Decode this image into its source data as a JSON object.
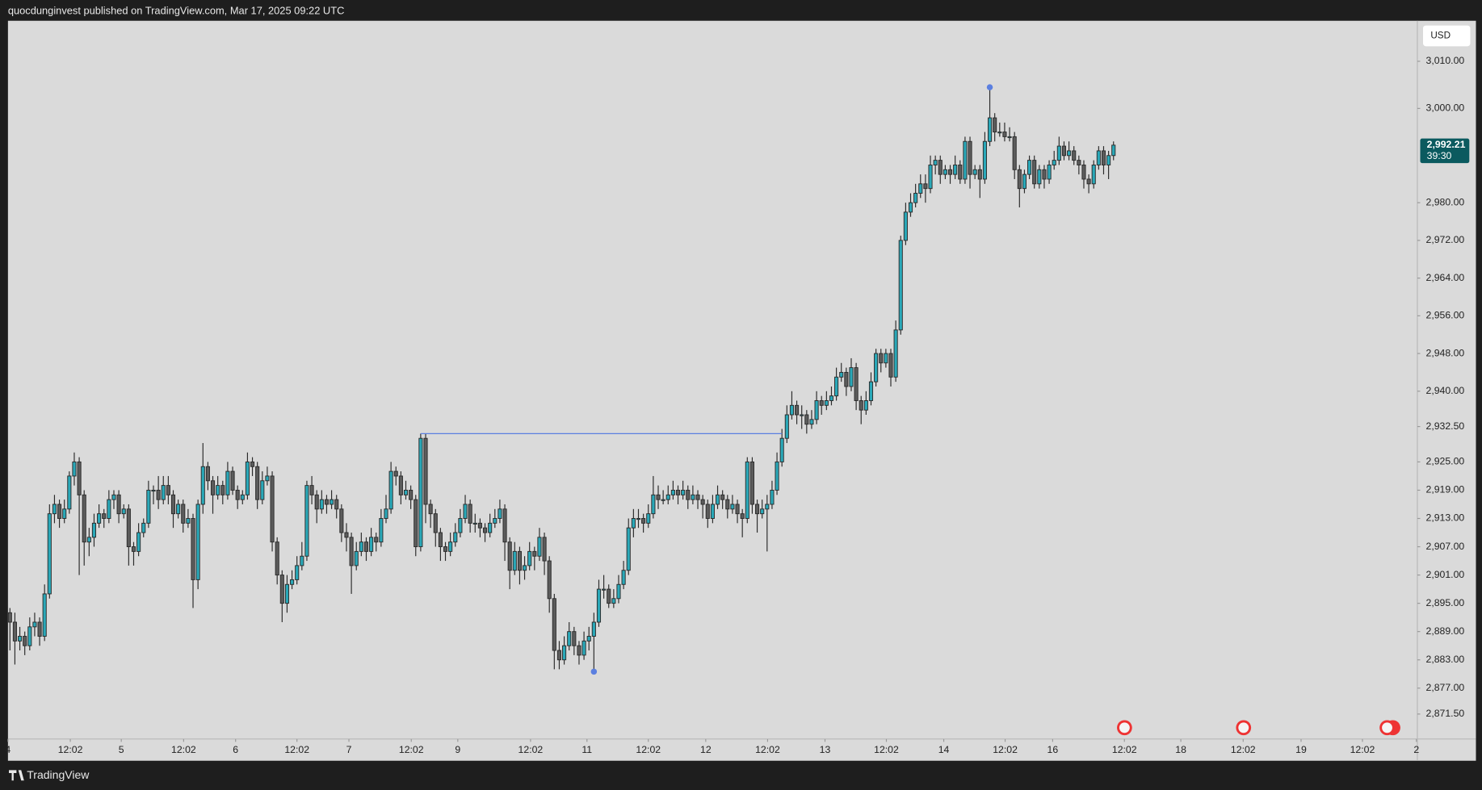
{
  "chart_data": {
    "type": "candlestick",
    "title": "quocdunginvest published on TradingView.com, Mar 17, 2025 09:22 UTC",
    "currency": "USD",
    "brand": "TradingView",
    "up_color": "#2aa8b8",
    "down_color": "#5c5c5c",
    "wick_color": "#2b2b2b",
    "grid": false,
    "ylim": [
      2866.2,
      3018.6
    ],
    "yticks": [
      {
        "value": 3010,
        "label": "3,010.00"
      },
      {
        "value": 3000,
        "label": "3,000.00"
      },
      {
        "value": 2980,
        "label": "2,980.00"
      },
      {
        "value": 2972,
        "label": "2,972.00"
      },
      {
        "value": 2964,
        "label": "2,964.00"
      },
      {
        "value": 2956,
        "label": "2,956.00"
      },
      {
        "value": 2948,
        "label": "2,948.00"
      },
      {
        "value": 2940,
        "label": "2,940.00"
      },
      {
        "value": 2932.5,
        "label": "2,932.50"
      },
      {
        "value": 2925,
        "label": "2,925.00"
      },
      {
        "value": 2919,
        "label": "2,919.00"
      },
      {
        "value": 2913,
        "label": "2,913.00"
      },
      {
        "value": 2907,
        "label": "2,907.00"
      },
      {
        "value": 2901,
        "label": "2,901.00"
      },
      {
        "value": 2895,
        "label": "2,895.00"
      },
      {
        "value": 2889,
        "label": "2,889.00"
      },
      {
        "value": 2883,
        "label": "2,883.00"
      },
      {
        "value": 2877,
        "label": "2,877.00"
      },
      {
        "value": 2871.5,
        "label": "2,871.50"
      }
    ],
    "xlim": [
      -0.4,
      284.4
    ],
    "xticks": [
      {
        "value": -0.4,
        "label": "4"
      },
      {
        "value": 12.2,
        "label": "12:02"
      },
      {
        "value": 22.5,
        "label": "5"
      },
      {
        "value": 35.1,
        "label": "12:02"
      },
      {
        "value": 45.6,
        "label": "6"
      },
      {
        "value": 58.0,
        "label": "12:02"
      },
      {
        "value": 68.5,
        "label": "7"
      },
      {
        "value": 81.1,
        "label": "12:02"
      },
      {
        "value": 90.5,
        "label": "9"
      },
      {
        "value": 105.2,
        "label": "12:02"
      },
      {
        "value": 116.6,
        "label": "11"
      },
      {
        "value": 129.0,
        "label": "12:02"
      },
      {
        "value": 140.6,
        "label": "12"
      },
      {
        "value": 153.1,
        "label": "12:02"
      },
      {
        "value": 164.7,
        "label": "13"
      },
      {
        "value": 177.1,
        "label": "12:02"
      },
      {
        "value": 188.7,
        "label": "14"
      },
      {
        "value": 201.1,
        "label": "12:02"
      },
      {
        "value": 210.7,
        "label": "16"
      },
      {
        "value": 225.2,
        "label": "12:02"
      },
      {
        "value": 236.6,
        "label": "18"
      },
      {
        "value": 249.2,
        "label": "12:02"
      },
      {
        "value": 260.9,
        "label": "19"
      },
      {
        "value": 273.3,
        "label": "12:02"
      },
      {
        "value": 284.2,
        "label": "2"
      }
    ],
    "last_price": {
      "value": 2992.21,
      "label": "2,992.21"
    },
    "countdown": "39:30",
    "hline": {
      "value": 2931,
      "from": 83,
      "to": 156,
      "color": "#5b7fe0"
    },
    "markers": [
      {
        "index": 198,
        "value": 3004.5,
        "color": "#5b7fe0"
      },
      {
        "index": 118,
        "value": 2880.5,
        "color": "#5b7fe0"
      }
    ],
    "candles": [
      [
        2893,
        2894,
        2885,
        2891
      ],
      [
        2891,
        2893,
        2882,
        2887
      ],
      [
        2887,
        2890,
        2885,
        2888
      ],
      [
        2888,
        2889,
        2884,
        2886
      ],
      [
        2886,
        2892,
        2885,
        2890
      ],
      [
        2890,
        2893,
        2888,
        2891
      ],
      [
        2891,
        2892,
        2886,
        2888
      ],
      [
        2888,
        2899,
        2887,
        2897
      ],
      [
        2897,
        2916,
        2896,
        2914
      ],
      [
        2914,
        2918,
        2912,
        2916
      ],
      [
        2916,
        2917,
        2911,
        2913
      ],
      [
        2913,
        2917,
        2912,
        2915
      ],
      [
        2915,
        2923,
        2914,
        2922
      ],
      [
        2922,
        2927,
        2920,
        2925
      ],
      [
        2925,
        2926,
        2901,
        2918
      ],
      [
        2918,
        2919,
        2903,
        2908
      ],
      [
        2908,
        2911,
        2905,
        2909
      ],
      [
        2909,
        2914,
        2907,
        2912
      ],
      [
        2912,
        2916,
        2911,
        2914
      ],
      [
        2914,
        2915,
        2911,
        2913
      ],
      [
        2913,
        2919,
        2912,
        2917
      ],
      [
        2917,
        2919,
        2915,
        2918
      ],
      [
        2918,
        2919,
        2912,
        2914
      ],
      [
        2914,
        2916,
        2913,
        2915
      ],
      [
        2915,
        2916,
        2903,
        2907
      ],
      [
        2907,
        2908,
        2903,
        2906
      ],
      [
        2906,
        2912,
        2905,
        2910
      ],
      [
        2910,
        2913,
        2909,
        2912
      ],
      [
        2912,
        2921,
        2911,
        2919
      ],
      [
        2919,
        2920,
        2916,
        2919
      ],
      [
        2919,
        2922,
        2915,
        2917
      ],
      [
        2917,
        2922,
        2916,
        2920
      ],
      [
        2920,
        2922,
        2916,
        2918
      ],
      [
        2918,
        2919,
        2911,
        2914
      ],
      [
        2914,
        2917,
        2913,
        2916
      ],
      [
        2916,
        2917,
        2910,
        2912
      ],
      [
        2912,
        2915,
        2911,
        2913
      ],
      [
        2913,
        2914,
        2894,
        2900
      ],
      [
        2900,
        2917,
        2898,
        2916
      ],
      [
        2916,
        2929,
        2914,
        2924
      ],
      [
        2924,
        2925,
        2919,
        2921
      ],
      [
        2921,
        2922,
        2914,
        2918
      ],
      [
        2918,
        2922,
        2917,
        2920
      ],
      [
        2920,
        2921,
        2916,
        2918
      ],
      [
        2918,
        2925,
        2917,
        2923
      ],
      [
        2923,
        2924,
        2918,
        2919
      ],
      [
        2919,
        2920,
        2915,
        2917
      ],
      [
        2917,
        2919,
        2916,
        2918
      ],
      [
        2918,
        2927,
        2917,
        2925
      ],
      [
        2925,
        2926,
        2922,
        2924
      ],
      [
        2924,
        2925,
        2915,
        2917
      ],
      [
        2917,
        2923,
        2916,
        2921
      ],
      [
        2921,
        2924,
        2920,
        2922
      ],
      [
        2922,
        2923,
        2906,
        2908
      ],
      [
        2908,
        2909,
        2899,
        2901
      ],
      [
        2901,
        2902,
        2891,
        2895
      ],
      [
        2895,
        2901,
        2893,
        2899
      ],
      [
        2899,
        2902,
        2898,
        2900
      ],
      [
        2900,
        2905,
        2899,
        2903
      ],
      [
        2903,
        2908,
        2902,
        2905
      ],
      [
        2905,
        2921,
        2904,
        2920
      ],
      [
        2920,
        2922,
        2916,
        2918
      ],
      [
        2918,
        2919,
        2912,
        2915
      ],
      [
        2915,
        2919,
        2914,
        2917
      ],
      [
        2917,
        2918,
        2914,
        2916
      ],
      [
        2916,
        2919,
        2915,
        2917
      ],
      [
        2917,
        2918,
        2913,
        2915
      ],
      [
        2915,
        2916,
        2908,
        2910
      ],
      [
        2910,
        2912,
        2906,
        2909
      ],
      [
        2909,
        2910,
        2897,
        2903
      ],
      [
        2903,
        2908,
        2902,
        2906
      ],
      [
        2906,
        2910,
        2905,
        2908
      ],
      [
        2908,
        2909,
        2904,
        2906
      ],
      [
        2906,
        2911,
        2905,
        2909
      ],
      [
        2909,
        2910,
        2906,
        2908
      ],
      [
        2908,
        2915,
        2907,
        2913
      ],
      [
        2913,
        2918,
        2912,
        2915
      ],
      [
        2915,
        2925,
        2914,
        2923
      ],
      [
        2923,
        2924,
        2920,
        2922
      ],
      [
        2922,
        2923,
        2916,
        2918
      ],
      [
        2918,
        2921,
        2917,
        2919
      ],
      [
        2919,
        2920,
        2915,
        2917
      ],
      [
        2917,
        2918,
        2905,
        2907
      ],
      [
        2907,
        2931,
        2906,
        2930
      ],
      [
        2930,
        2931,
        2912,
        2916
      ],
      [
        2916,
        2917,
        2911,
        2914
      ],
      [
        2914,
        2915,
        2907,
        2910
      ],
      [
        2910,
        2911,
        2904,
        2907
      ],
      [
        2907,
        2908,
        2904,
        2906
      ],
      [
        2906,
        2910,
        2905,
        2908
      ],
      [
        2908,
        2912,
        2907,
        2910
      ],
      [
        2910,
        2915,
        2909,
        2913
      ],
      [
        2913,
        2918,
        2912,
        2916
      ],
      [
        2916,
        2917,
        2910,
        2912
      ],
      [
        2912,
        2914,
        2910,
        2912
      ],
      [
        2912,
        2913,
        2909,
        2911
      ],
      [
        2911,
        2912,
        2908,
        2910
      ],
      [
        2910,
        2914,
        2909,
        2912
      ],
      [
        2912,
        2915,
        2911,
        2913
      ],
      [
        2913,
        2917,
        2912,
        2915
      ],
      [
        2915,
        2916,
        2904,
        2908
      ],
      [
        2908,
        2909,
        2898,
        2902
      ],
      [
        2902,
        2908,
        2901,
        2906
      ],
      [
        2906,
        2907,
        2899,
        2902
      ],
      [
        2902,
        2905,
        2900,
        2903
      ],
      [
        2903,
        2908,
        2902,
        2906
      ],
      [
        2906,
        2907,
        2902,
        2905
      ],
      [
        2905,
        2911,
        2904,
        2909
      ],
      [
        2909,
        2910,
        2901,
        2904
      ],
      [
        2904,
        2905,
        2893,
        2896
      ],
      [
        2896,
        2897,
        2881,
        2885
      ],
      [
        2885,
        2887,
        2881,
        2883
      ],
      [
        2883,
        2888,
        2882,
        2886
      ],
      [
        2886,
        2891,
        2885,
        2889
      ],
      [
        2889,
        2890,
        2884,
        2886
      ],
      [
        2886,
        2887,
        2882,
        2884
      ],
      [
        2884,
        2889,
        2883,
        2887
      ],
      [
        2887,
        2890,
        2885,
        2888
      ],
      [
        2888,
        2893,
        2881,
        2891
      ],
      [
        2891,
        2900,
        2890,
        2898
      ],
      [
        2898,
        2901,
        2896,
        2898
      ],
      [
        2898,
        2899,
        2894,
        2895
      ],
      [
        2895,
        2898,
        2894,
        2896
      ],
      [
        2896,
        2901,
        2895,
        2899
      ],
      [
        2899,
        2904,
        2898,
        2902
      ],
      [
        2902,
        2913,
        2901,
        2911
      ],
      [
        2911,
        2915,
        2909,
        2913
      ],
      [
        2913,
        2915,
        2911,
        2913
      ],
      [
        2913,
        2914,
        2910,
        2912
      ],
      [
        2912,
        2916,
        2911,
        2914
      ],
      [
        2914,
        2922,
        2913,
        2918
      ],
      [
        2918,
        2920,
        2915,
        2917
      ],
      [
        2917,
        2919,
        2916,
        2917
      ],
      [
        2917,
        2920,
        2916,
        2918
      ],
      [
        2918,
        2921,
        2917,
        2919
      ],
      [
        2919,
        2920,
        2916,
        2918
      ],
      [
        2918,
        2921,
        2917,
        2919
      ],
      [
        2919,
        2920,
        2915,
        2917
      ],
      [
        2917,
        2920,
        2916,
        2918
      ],
      [
        2918,
        2919,
        2915,
        2917
      ],
      [
        2917,
        2918,
        2913,
        2916
      ],
      [
        2916,
        2917,
        2911,
        2913
      ],
      [
        2913,
        2918,
        2912,
        2916
      ],
      [
        2916,
        2920,
        2915,
        2918
      ],
      [
        2918,
        2919,
        2915,
        2917
      ],
      [
        2917,
        2918,
        2913,
        2915
      ],
      [
        2915,
        2918,
        2914,
        2916
      ],
      [
        2916,
        2917,
        2912,
        2914
      ],
      [
        2914,
        2915,
        2909,
        2913
      ],
      [
        2913,
        2926,
        2912,
        2925
      ],
      [
        2925,
        2926,
        2914,
        2916
      ],
      [
        2916,
        2917,
        2910,
        2914
      ],
      [
        2914,
        2917,
        2913,
        2915
      ],
      [
        2915,
        2918,
        2906,
        2916
      ],
      [
        2916,
        2921,
        2915,
        2919
      ],
      [
        2919,
        2927,
        2918,
        2925
      ],
      [
        2925,
        2932,
        2924,
        2930
      ],
      [
        2930,
        2937,
        2929,
        2935
      ],
      [
        2935,
        2940,
        2934,
        2937
      ],
      [
        2937,
        2938,
        2933,
        2935
      ],
      [
        2935,
        2937,
        2932,
        2935
      ],
      [
        2935,
        2936,
        2931,
        2933
      ],
      [
        2933,
        2936,
        2932,
        2934
      ],
      [
        2934,
        2940,
        2933,
        2938
      ],
      [
        2938,
        2939,
        2935,
        2937
      ],
      [
        2937,
        2940,
        2936,
        2938
      ],
      [
        2938,
        2941,
        2937,
        2939
      ],
      [
        2939,
        2945,
        2938,
        2943
      ],
      [
        2943,
        2946,
        2942,
        2944
      ],
      [
        2944,
        2945,
        2939,
        2941
      ],
      [
        2941,
        2947,
        2940,
        2945
      ],
      [
        2945,
        2946,
        2936,
        2938
      ],
      [
        2938,
        2939,
        2933,
        2936
      ],
      [
        2936,
        2940,
        2935,
        2938
      ],
      [
        2938,
        2944,
        2937,
        2942
      ],
      [
        2942,
        2949,
        2941,
        2948
      ],
      [
        2948,
        2949,
        2944,
        2946
      ],
      [
        2946,
        2949,
        2945,
        2948
      ],
      [
        2948,
        2949,
        2941,
        2943
      ],
      [
        2943,
        2955,
        2942,
        2953
      ],
      [
        2953,
        2973,
        2952,
        2972
      ],
      [
        2972,
        2980,
        2971,
        2978
      ],
      [
        2978,
        2982,
        2977,
        2980
      ],
      [
        2980,
        2984,
        2979,
        2982
      ],
      [
        2982,
        2986,
        2981,
        2984
      ],
      [
        2984,
        2986,
        2980,
        2983
      ],
      [
        2983,
        2990,
        2982,
        2988
      ],
      [
        2988,
        2990,
        2986,
        2989
      ],
      [
        2989,
        2990,
        2984,
        2986
      ],
      [
        2986,
        2988,
        2985,
        2987
      ],
      [
        2987,
        2988,
        2984,
        2986
      ],
      [
        2986,
        2990,
        2985,
        2988
      ],
      [
        2988,
        2989,
        2984,
        2985
      ],
      [
        2985,
        2994,
        2984,
        2993
      ],
      [
        2993,
        2994,
        2983,
        2986
      ],
      [
        2986,
        2988,
        2985,
        2987
      ],
      [
        2987,
        2988,
        2981,
        2985
      ],
      [
        2985,
        2995,
        2984,
        2993
      ],
      [
        2993,
        3004,
        2992,
        2998
      ],
      [
        2998,
        2999,
        2993,
        2995
      ],
      [
        2995,
        2997,
        2994,
        2995
      ],
      [
        2995,
        2997,
        2993,
        2994
      ],
      [
        2994,
        2996,
        2993,
        2994
      ],
      [
        2994,
        2995,
        2985,
        2987
      ],
      [
        2987,
        2988,
        2979,
        2983
      ],
      [
        2983,
        2987,
        2982,
        2986
      ],
      [
        2986,
        2990,
        2985,
        2989
      ],
      [
        2989,
        2990,
        2983,
        2984
      ],
      [
        2984,
        2988,
        2983,
        2987
      ],
      [
        2987,
        2988,
        2983,
        2985
      ],
      [
        2985,
        2989,
        2984,
        2988
      ],
      [
        2988,
        2991,
        2987,
        2989
      ],
      [
        2989,
        2994,
        2988,
        2992
      ],
      [
        2992,
        2993,
        2989,
        2990
      ],
      [
        2990,
        2993,
        2989,
        2991
      ],
      [
        2991,
        2992,
        2988,
        2989
      ],
      [
        2989,
        2990,
        2986,
        2988
      ],
      [
        2988,
        2989,
        2983,
        2985
      ],
      [
        2985,
        2986,
        2982,
        2984
      ],
      [
        2984,
        2989,
        2983,
        2988
      ],
      [
        2988,
        2992,
        2987,
        2991
      ],
      [
        2991,
        2992,
        2986,
        2988
      ],
      [
        2988,
        2991,
        2985,
        2990
      ],
      [
        2990,
        2993,
        2989,
        2992.21
      ]
    ]
  }
}
